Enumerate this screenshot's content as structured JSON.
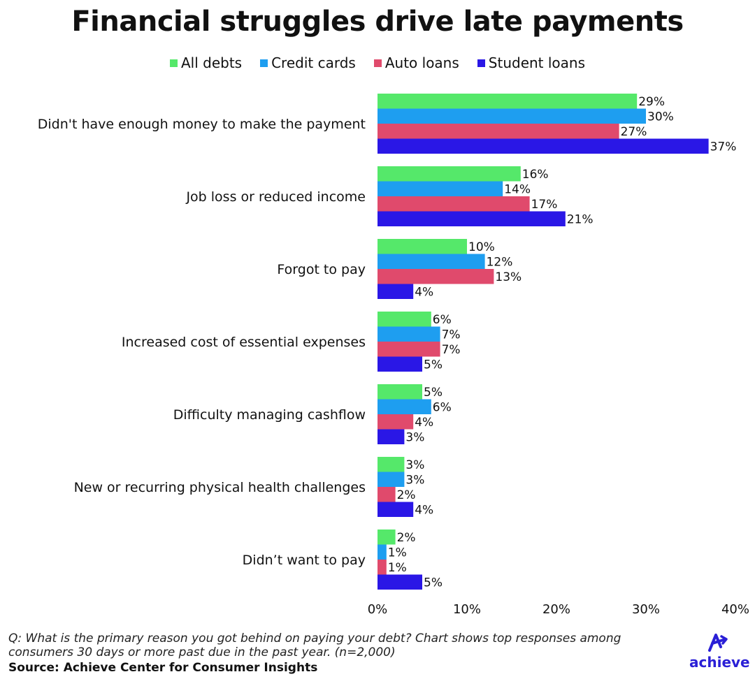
{
  "title": "Financial struggles drive late payments",
  "footnote": "Q: What is the primary reason you got behind on paying your debt? Chart shows top responses among consumers 30 days or more past due in the past year. (n=2,000)",
  "source": "Source: Achieve Center for Consumer Insights",
  "logo_text": "achieve",
  "chart_data": {
    "type": "bar",
    "orientation": "horizontal",
    "title": "Financial struggles drive late payments",
    "categories": [
      "Didn't have enough money to make the payment",
      "Job loss or reduced income",
      "Forgot to pay",
      "Increased cost of essential expenses",
      "Difficulty managing cashflow",
      "New or recurring physical health challenges",
      "Didn’t want to pay"
    ],
    "series": [
      {
        "name": "All debts",
        "color": "#55e86a",
        "values": [
          29,
          16,
          10,
          6,
          5,
          3,
          2
        ]
      },
      {
        "name": "Credit cards",
        "color": "#1e9ef0",
        "values": [
          30,
          14,
          12,
          7,
          6,
          3,
          1
        ]
      },
      {
        "name": "Auto loans",
        "color": "#e04a6c",
        "values": [
          27,
          17,
          13,
          7,
          4,
          2,
          1
        ]
      },
      {
        "name": "Student loans",
        "color": "#2a17e6",
        "values": [
          37,
          21,
          4,
          5,
          3,
          4,
          5
        ]
      }
    ],
    "xlim": [
      0,
      40
    ],
    "xticks": [
      0,
      10,
      20,
      30,
      40
    ],
    "tick_suffix": "%",
    "value_suffix": "%",
    "legend_position": "top",
    "grid": false
  }
}
